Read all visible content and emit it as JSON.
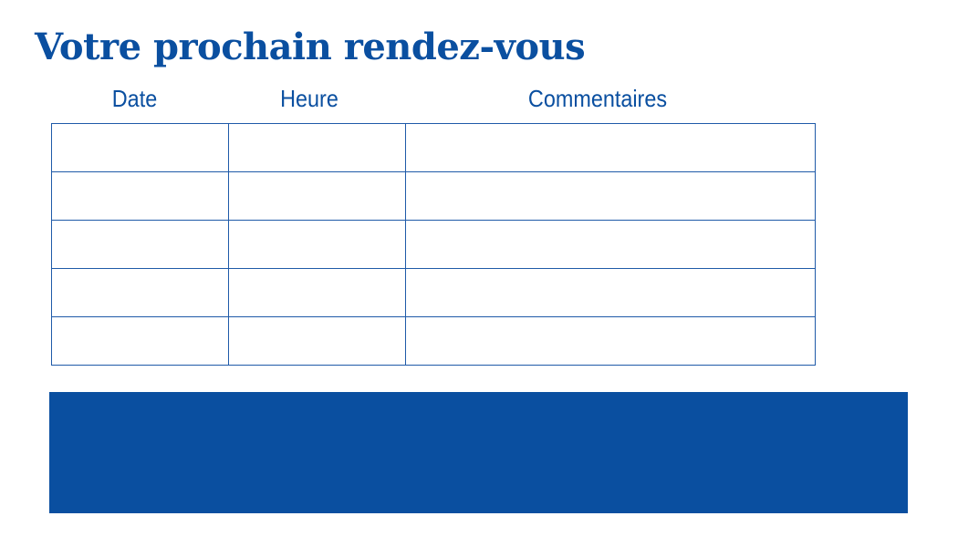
{
  "title": "Votre prochain rendez-vous",
  "table": {
    "columns": [
      "Date",
      "Heure",
      "Commentaires"
    ],
    "rows": [
      [
        "",
        "",
        ""
      ],
      [
        "",
        "",
        ""
      ],
      [
        "",
        "",
        ""
      ],
      [
        "",
        "",
        ""
      ],
      [
        "",
        "",
        ""
      ]
    ]
  },
  "colors": {
    "brand_blue": "#0a4fa0"
  }
}
